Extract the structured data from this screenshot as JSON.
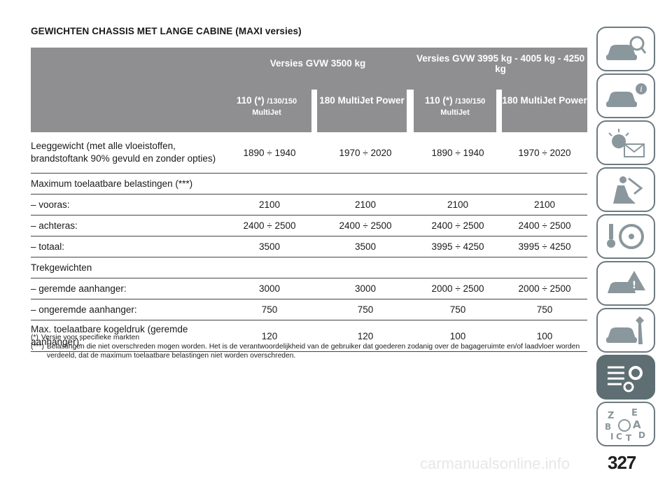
{
  "title": "GEWICHTEN CHASSIS MET LANGE CABINE (MAXI versies)",
  "header": {
    "group1": "Versies GVW 3500 kg",
    "group2": "Versies GVW 3995 kg - 4005 kg - 4250 kg",
    "col1_main": "110 (*) ",
    "col1_sub": "/130/150",
    "col1_sub2": "MultiJet",
    "col2": "180 MultiJet Power",
    "col3_main": "110 (*) ",
    "col3_sub": "/130/150",
    "col3_sub2": "MultiJet",
    "col4": "180 MultiJet Power"
  },
  "rows": [
    {
      "label": "Leeggewicht (met alle vloeistoffen, brandstoftank 90% gevuld en zonder opties)",
      "v1": "1890 ÷ 1940",
      "v2": "1970 ÷ 2020",
      "v3": "1890 ÷ 1940",
      "v4": "1970 ÷ 2020"
    },
    {
      "label": "Maximum toelaatbare belastingen (***)",
      "v1": "",
      "v2": "",
      "v3": "",
      "v4": ""
    },
    {
      "label": "– vooras:",
      "v1": "2100",
      "v2": "2100",
      "v3": "2100",
      "v4": "2100"
    },
    {
      "label": "– achteras:",
      "v1": "2400 ÷ 2500",
      "v2": "2400 ÷ 2500",
      "v3": "2400 ÷ 2500",
      "v4": "2400 ÷ 2500"
    },
    {
      "label": "– totaal:",
      "v1": "3500",
      "v2": "3500",
      "v3": "3995 ÷ 4250",
      "v4": "3995 ÷ 4250"
    },
    {
      "label": "Trekgewichten",
      "v1": "",
      "v2": "",
      "v3": "",
      "v4": ""
    },
    {
      "label": "– geremde aanhanger:",
      "v1": "3000",
      "v2": "3000",
      "v3": "2000 ÷ 2500",
      "v4": "2000 ÷ 2500"
    },
    {
      "label": "– ongeremde aanhanger:",
      "v1": "750",
      "v2": "750",
      "v3": "750",
      "v4": "750"
    },
    {
      "label": "Max. toelaatbare kogeldruk (geremde aanhanger):",
      "v1": "120",
      "v2": "120",
      "v3": "100",
      "v4": "100"
    }
  ],
  "notes": [
    {
      "key": "(*)",
      "text": "Versie voor specifieke markten"
    },
    {
      "key": "(***)",
      "text": "Belastingen die niet overschreden mogen worden. Het is de verantwoordelijkheid van de gebruiker dat goederen zodanig over de bagageruimte en/of laadvloer worden verdeeld, dat de maximum toelaatbare belastingen niet worden overschreden."
    }
  ],
  "sidebar": {
    "tabs": [
      {
        "icon": "car-search-icon"
      },
      {
        "icon": "car-info-icon"
      },
      {
        "icon": "warning-light-mail-icon"
      },
      {
        "icon": "seat-airbag-icon"
      },
      {
        "icon": "steering-wheel-key-icon"
      },
      {
        "icon": "car-crash-warning-icon"
      },
      {
        "icon": "car-wrench-icon"
      },
      {
        "icon": "specifications-gear-icon",
        "active": true
      },
      {
        "icon": "alphabetical-index-icon"
      }
    ]
  },
  "page_number": "327",
  "watermark": "carmanualsonline.info",
  "colors": {
    "header_bg": "#8f8f91",
    "sidebar_border": "#6d7a80",
    "active_tab": "#5e6e72"
  }
}
